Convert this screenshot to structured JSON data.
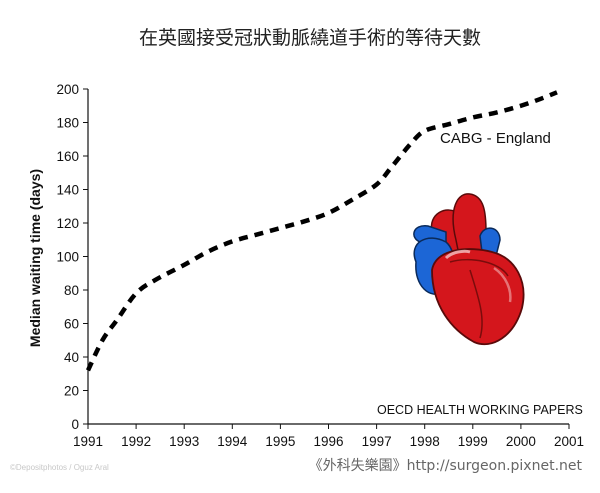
{
  "chart_data": {
    "type": "line",
    "title": "在英國接受冠狀動脈繞道手術的等待天數",
    "ylabel": "Median waiting time (days)",
    "xlabel": "",
    "x": [
      "1991",
      "1992",
      "1993",
      "1994",
      "1995",
      "1996",
      "1997",
      "1998",
      "1999",
      "2000",
      "2001"
    ],
    "xlim": [
      1991,
      2001
    ],
    "ylim": [
      0,
      200
    ],
    "yticks": [
      0,
      20,
      40,
      60,
      80,
      100,
      120,
      140,
      160,
      180,
      200
    ],
    "grid": false,
    "line_style": "dashed",
    "series": [
      {
        "name": "CABG - England",
        "color": "#000000",
        "points": [
          [
            1991.0,
            32
          ],
          [
            1991.3,
            50
          ],
          [
            1991.6,
            62
          ],
          [
            1992.0,
            78
          ],
          [
            1992.4,
            86
          ],
          [
            1993.0,
            95
          ],
          [
            1993.5,
            103
          ],
          [
            1994.0,
            109
          ],
          [
            1994.5,
            113
          ],
          [
            1995.0,
            117
          ],
          [
            1995.5,
            121
          ],
          [
            1996.0,
            126
          ],
          [
            1996.5,
            134
          ],
          [
            1997.0,
            143
          ],
          [
            1997.3,
            153
          ],
          [
            1997.7,
            167
          ],
          [
            1998.0,
            175
          ],
          [
            1998.5,
            179
          ],
          [
            1999.0,
            183
          ],
          [
            1999.5,
            186
          ],
          [
            2000.0,
            190
          ],
          [
            2000.4,
            194
          ],
          [
            2000.75,
            198
          ]
        ]
      }
    ],
    "annotations": [
      {
        "text": "OECD HEALTH WORKING PAPERS"
      }
    ]
  },
  "decor": {
    "image": "heart-illustration",
    "credit": "©Depositphotos / Oguz Aral",
    "site": "《外科失樂園》http://surgeon.pixnet.net"
  },
  "colors": {
    "heart_red": "#d4161c",
    "heart_blue": "#1c66d6",
    "line": "#000000"
  }
}
